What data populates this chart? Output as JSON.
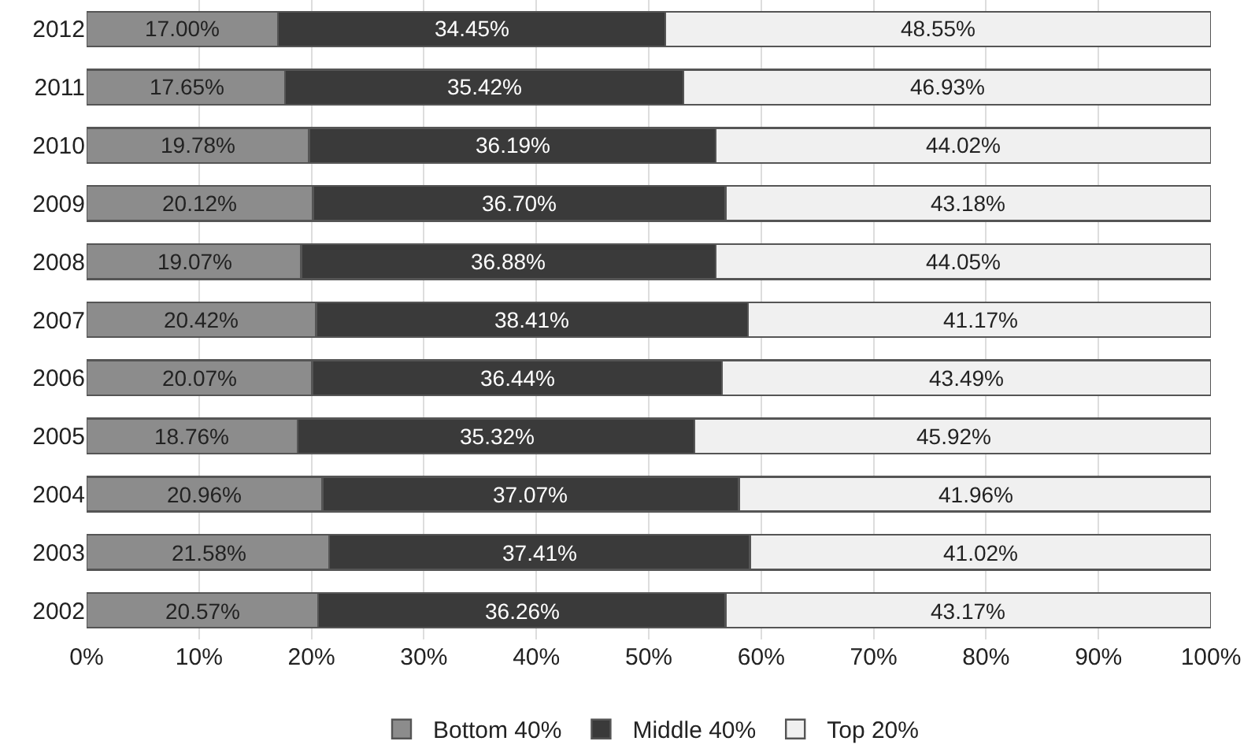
{
  "chart_data": {
    "type": "bar",
    "orientation": "horizontal",
    "stacked": true,
    "categories": [
      "2012",
      "2011",
      "2010",
      "2009",
      "2008",
      "2007",
      "2006",
      "2005",
      "2004",
      "2003",
      "2002"
    ],
    "series": [
      {
        "name": "Bottom 40%",
        "color": "#8c8c8c",
        "values": [
          17.0,
          17.65,
          19.78,
          20.12,
          19.07,
          20.42,
          20.07,
          18.76,
          20.96,
          21.58,
          20.57
        ],
        "value_labels": [
          "17.00%",
          "17.65%",
          "19.78%",
          "20.12%",
          "19.07%",
          "20.42%",
          "20.07%",
          "18.76%",
          "20.96%",
          "21.58%",
          "20.57%"
        ]
      },
      {
        "name": "Middle 40%",
        "color": "#3a3a3a",
        "values": [
          34.45,
          35.42,
          36.19,
          36.7,
          36.88,
          38.41,
          36.44,
          35.32,
          37.07,
          37.41,
          36.26
        ],
        "value_labels": [
          "34.45%",
          "35.42%",
          "36.19%",
          "36.70%",
          "36.88%",
          "38.41%",
          "36.44%",
          "35.32%",
          "37.07%",
          "37.41%",
          "36.26%"
        ]
      },
      {
        "name": "Top 20%",
        "color": "#f0f0f0",
        "values": [
          48.55,
          46.93,
          44.02,
          43.18,
          44.05,
          41.17,
          43.49,
          45.92,
          41.96,
          41.02,
          43.17
        ],
        "value_labels": [
          "48.55%",
          "46.93%",
          "44.02%",
          "43.18%",
          "44.05%",
          "41.17%",
          "43.49%",
          "45.92%",
          "41.96%",
          "41.02%",
          "43.17%"
        ]
      }
    ],
    "xlim": [
      0,
      100
    ],
    "xticks": [
      {
        "value": 0,
        "label": "0%"
      },
      {
        "value": 10,
        "label": "10%"
      },
      {
        "value": 20,
        "label": "20%"
      },
      {
        "value": 30,
        "label": "30%"
      },
      {
        "value": 40,
        "label": "40%"
      },
      {
        "value": 50,
        "label": "50%"
      },
      {
        "value": 60,
        "label": "60%"
      },
      {
        "value": 70,
        "label": "70%"
      },
      {
        "value": 80,
        "label": "80%"
      },
      {
        "value": 90,
        "label": "90%"
      },
      {
        "value": 100,
        "label": "100%"
      }
    ],
    "grid": "x",
    "legend": "bottom"
  }
}
